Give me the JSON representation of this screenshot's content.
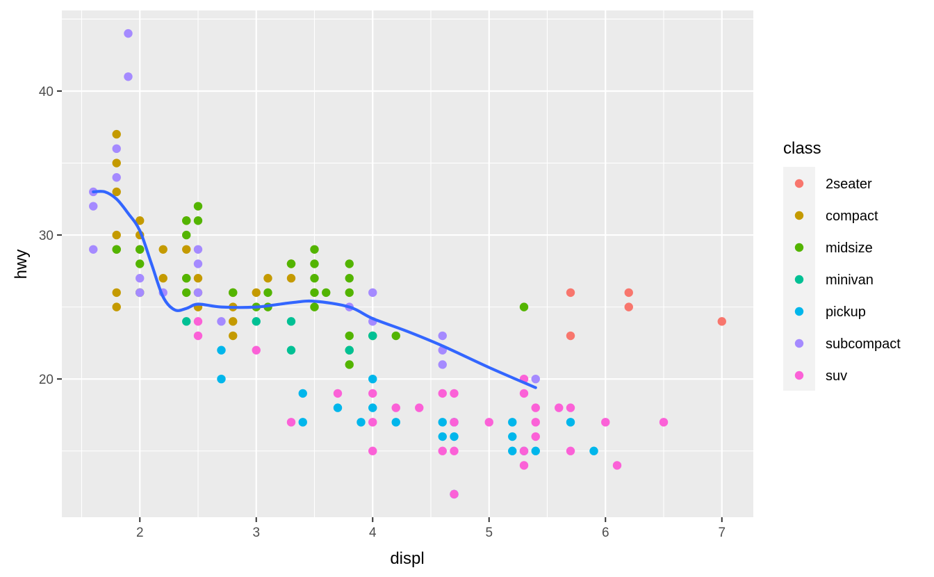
{
  "chart_data": {
    "type": "scatter",
    "title": "",
    "xlabel": "displ",
    "ylabel": "hwy",
    "xlim": [
      1.33,
      7.27
    ],
    "ylim": [
      10.4,
      45.6
    ],
    "x_ticks": [
      2,
      3,
      4,
      5,
      6,
      7
    ],
    "x_tick_labels": [
      "2",
      "3",
      "4",
      "5",
      "6",
      "7"
    ],
    "y_ticks": [
      20,
      30,
      40
    ],
    "y_tick_labels": [
      "20",
      "30",
      "40"
    ],
    "grid": true,
    "legend": {
      "title": "class",
      "placement": "right"
    },
    "series": [
      {
        "name": "2seater",
        "color": "#F8766D",
        "points": [
          [
            5.7,
            26
          ],
          [
            5.7,
            23
          ],
          [
            6.2,
            26
          ],
          [
            6.2,
            25
          ],
          [
            7.0,
            24
          ]
        ]
      },
      {
        "name": "compact",
        "color": "#C49A00",
        "points": [
          [
            1.8,
            37
          ],
          [
            1.8,
            35
          ],
          [
            1.8,
            33
          ],
          [
            1.8,
            30
          ],
          [
            1.8,
            29
          ],
          [
            1.8,
            26
          ],
          [
            1.8,
            25
          ],
          [
            2.0,
            31
          ],
          [
            2.0,
            30
          ],
          [
            2.0,
            29
          ],
          [
            2.0,
            26
          ],
          [
            2.2,
            29
          ],
          [
            2.2,
            27
          ],
          [
            2.4,
            31
          ],
          [
            2.4,
            29
          ],
          [
            2.4,
            27
          ],
          [
            2.5,
            27
          ],
          [
            2.5,
            26
          ],
          [
            2.5,
            25
          ],
          [
            2.8,
            26
          ],
          [
            2.8,
            25
          ],
          [
            2.8,
            24
          ],
          [
            2.8,
            23
          ],
          [
            3.0,
            26
          ],
          [
            3.1,
            27
          ],
          [
            3.3,
            27
          ],
          [
            3.3,
            28
          ]
        ]
      },
      {
        "name": "midsize",
        "color": "#53B400",
        "points": [
          [
            1.8,
            29
          ],
          [
            2.0,
            29
          ],
          [
            2.0,
            28
          ],
          [
            2.0,
            26
          ],
          [
            2.4,
            31
          ],
          [
            2.4,
            30
          ],
          [
            2.4,
            27
          ],
          [
            2.4,
            26
          ],
          [
            2.5,
            32
          ],
          [
            2.5,
            31
          ],
          [
            2.8,
            26
          ],
          [
            3.0,
            25
          ],
          [
            3.1,
            26
          ],
          [
            3.1,
            25
          ],
          [
            3.3,
            28
          ],
          [
            3.5,
            29
          ],
          [
            3.5,
            28
          ],
          [
            3.5,
            27
          ],
          [
            3.5,
            26
          ],
          [
            3.5,
            25
          ],
          [
            3.6,
            26
          ],
          [
            3.8,
            28
          ],
          [
            3.8,
            27
          ],
          [
            3.8,
            26
          ],
          [
            3.8,
            23
          ],
          [
            3.8,
            22
          ],
          [
            3.8,
            21
          ],
          [
            4.0,
            23
          ],
          [
            4.2,
            23
          ],
          [
            5.3,
            25
          ]
        ]
      },
      {
        "name": "minivan",
        "color": "#00C094",
        "points": [
          [
            2.4,
            24
          ],
          [
            3.0,
            24
          ],
          [
            3.3,
            24
          ],
          [
            3.3,
            22
          ],
          [
            3.8,
            22
          ],
          [
            4.0,
            23
          ]
        ]
      },
      {
        "name": "pickup",
        "color": "#00B6EB",
        "points": [
          [
            2.7,
            22
          ],
          [
            2.7,
            20
          ],
          [
            3.4,
            19
          ],
          [
            3.4,
            17
          ],
          [
            3.7,
            18
          ],
          [
            3.9,
            17
          ],
          [
            4.0,
            20
          ],
          [
            4.0,
            18
          ],
          [
            4.2,
            17
          ],
          [
            4.6,
            17
          ],
          [
            4.6,
            16
          ],
          [
            4.7,
            17
          ],
          [
            4.7,
            16
          ],
          [
            4.7,
            12
          ],
          [
            5.2,
            17
          ],
          [
            5.2,
            16
          ],
          [
            5.2,
            15
          ],
          [
            5.3,
            15
          ],
          [
            5.4,
            15
          ],
          [
            5.7,
            17
          ],
          [
            5.9,
            15
          ]
        ]
      },
      {
        "name": "subcompact",
        "color": "#A58AFF",
        "points": [
          [
            1.6,
            33
          ],
          [
            1.6,
            32
          ],
          [
            1.6,
            29
          ],
          [
            1.8,
            36
          ],
          [
            1.8,
            34
          ],
          [
            1.9,
            44
          ],
          [
            1.9,
            41
          ],
          [
            2.0,
            27
          ],
          [
            2.0,
            26
          ],
          [
            2.2,
            26
          ],
          [
            2.5,
            29
          ],
          [
            2.5,
            28
          ],
          [
            2.5,
            26
          ],
          [
            2.7,
            24
          ],
          [
            3.8,
            25
          ],
          [
            4.0,
            26
          ],
          [
            4.0,
            24
          ],
          [
            4.6,
            23
          ],
          [
            4.6,
            22
          ],
          [
            4.6,
            21
          ],
          [
            5.4,
            20
          ]
        ]
      },
      {
        "name": "suv",
        "color": "#FB61D7",
        "points": [
          [
            2.5,
            24
          ],
          [
            2.5,
            23
          ],
          [
            3.0,
            22
          ],
          [
            3.3,
            17
          ],
          [
            3.7,
            19
          ],
          [
            4.0,
            19
          ],
          [
            4.0,
            17
          ],
          [
            4.0,
            15
          ],
          [
            4.2,
            18
          ],
          [
            4.4,
            18
          ],
          [
            4.6,
            19
          ],
          [
            4.6,
            15
          ],
          [
            4.7,
            19
          ],
          [
            4.7,
            17
          ],
          [
            4.7,
            15
          ],
          [
            4.7,
            12
          ],
          [
            5.0,
            17
          ],
          [
            5.3,
            20
          ],
          [
            5.3,
            19
          ],
          [
            5.3,
            15
          ],
          [
            5.3,
            14
          ],
          [
            5.4,
            18
          ],
          [
            5.4,
            17
          ],
          [
            5.4,
            16
          ],
          [
            5.6,
            18
          ],
          [
            5.7,
            18
          ],
          [
            5.7,
            15
          ],
          [
            6.0,
            17
          ],
          [
            6.1,
            14
          ],
          [
            6.5,
            17
          ]
        ]
      }
    ],
    "smooth": {
      "name": "loess",
      "color": "#3366FF",
      "points": [
        [
          1.6,
          33
        ],
        [
          1.7,
          33
        ],
        [
          1.8,
          32.5
        ],
        [
          1.9,
          31.5
        ],
        [
          2.0,
          30.3
        ],
        [
          2.1,
          28
        ],
        [
          2.2,
          25.7
        ],
        [
          2.3,
          24.8
        ],
        [
          2.4,
          24.9
        ],
        [
          2.5,
          25.2
        ],
        [
          2.7,
          25
        ],
        [
          3.0,
          25
        ],
        [
          3.3,
          25.3
        ],
        [
          3.5,
          25.4
        ],
        [
          3.8,
          25
        ],
        [
          4.0,
          24.2
        ],
        [
          4.3,
          23.3
        ],
        [
          4.6,
          22.3
        ],
        [
          5.0,
          20.8
        ],
        [
          5.4,
          19.4
        ]
      ]
    }
  }
}
